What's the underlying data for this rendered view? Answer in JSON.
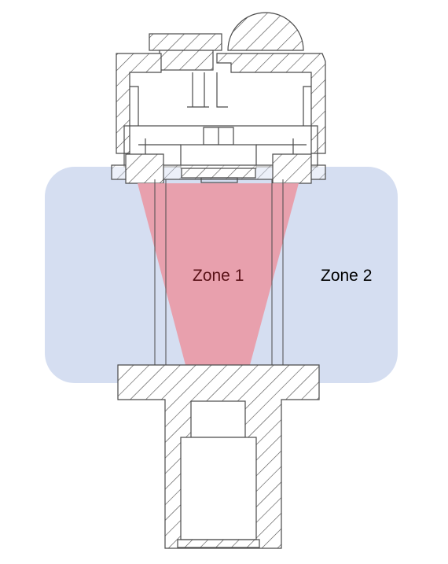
{
  "zones": {
    "zone1": {
      "label": "Zone 1",
      "fill_color": "#e8a0ad",
      "text_color": "#5a1218"
    },
    "zone2": {
      "label": "Zone 2",
      "fill_color": "#d5def1",
      "text_color": "#000000"
    }
  },
  "drawing": {
    "line_color": "#4a4a4a",
    "hatch_pattern": "diagonal-hatch",
    "background": "#ffffff"
  }
}
